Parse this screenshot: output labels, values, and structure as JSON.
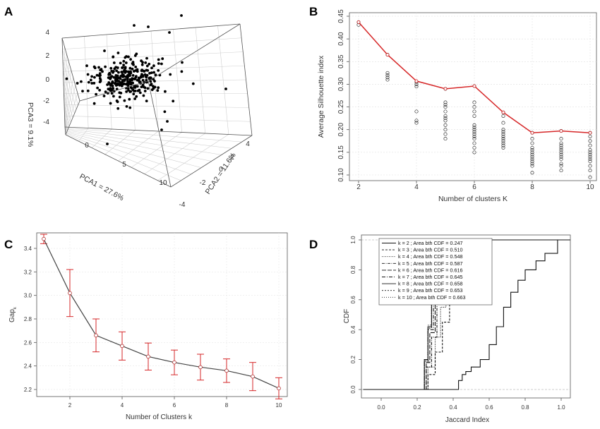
{
  "panels": {
    "A": {
      "letter": "A"
    },
    "B": {
      "letter": "B"
    },
    "C": {
      "letter": "C"
    },
    "D": {
      "letter": "D"
    }
  },
  "chart_data": [
    {
      "id": "A",
      "type": "scatter",
      "subtype": "3d-scatter",
      "xlabel": "PCA1 = 27.6%",
      "ylabel": "PCA2 = 11.6%",
      "zlabel": "PCA3 = 9.1%",
      "x_ticks": [
        "0",
        "5",
        "10"
      ],
      "y_ticks": [
        "-4",
        "-2",
        "0",
        "2",
        "4"
      ],
      "z_ticks": [
        "-4",
        "-2",
        "0",
        "2",
        "4"
      ],
      "grid": true,
      "point_color": "#000000",
      "point_count": 300
    },
    {
      "id": "B",
      "type": "line",
      "xlabel": "Number of clusters K",
      "ylabel": "Average Silhouette index",
      "xlim": [
        2,
        10
      ],
      "ylim": [
        0.08,
        0.45
      ],
      "x_ticks": [
        2,
        4,
        6,
        8,
        10
      ],
      "y_ticks": [
        0.1,
        0.15,
        0.2,
        0.25,
        0.3,
        0.35,
        0.4,
        0.45
      ],
      "y_tick_labels": [
        "0.10",
        "0.15",
        "0.20",
        "0.25",
        "0.30",
        "0.35",
        "0.40",
        "0.45"
      ],
      "grid": true,
      "line_color": "#d62728",
      "x": [
        2,
        3,
        4,
        5,
        6,
        7,
        8,
        9,
        10
      ],
      "y": [
        0.437,
        0.365,
        0.307,
        0.29,
        0.296,
        0.238,
        0.193,
        0.197,
        0.193
      ],
      "scatter": [
        [
          0.437,
          0.431
        ],
        [
          0.365,
          0.325,
          0.32,
          0.315,
          0.31
        ],
        [
          0.305,
          0.3,
          0.295,
          0.24,
          0.22,
          0.215
        ],
        [
          0.29,
          0.26,
          0.255,
          0.25,
          0.24,
          0.23,
          0.225,
          0.22,
          0.21,
          0.2,
          0.19,
          0.18
        ],
        [
          0.296,
          0.26,
          0.25,
          0.24,
          0.23,
          0.21,
          0.205,
          0.2,
          0.195,
          0.19,
          0.185,
          0.18,
          0.17,
          0.16,
          0.15
        ],
        [
          0.238,
          0.23,
          0.215,
          0.2,
          0.195,
          0.19,
          0.185,
          0.18,
          0.175,
          0.17,
          0.165,
          0.16
        ],
        [
          0.193,
          0.18,
          0.17,
          0.16,
          0.155,
          0.15,
          0.145,
          0.14,
          0.135,
          0.13,
          0.125,
          0.12,
          0.105
        ],
        [
          0.197,
          0.18,
          0.17,
          0.165,
          0.16,
          0.155,
          0.15,
          0.145,
          0.14,
          0.135,
          0.125,
          0.12,
          0.11
        ],
        [
          0.193,
          0.185,
          0.175,
          0.165,
          0.155,
          0.15,
          0.145,
          0.14,
          0.135,
          0.13,
          0.12,
          0.11,
          0.095
        ]
      ]
    },
    {
      "id": "C",
      "type": "line",
      "subtype": "errorbar",
      "xlabel": "Number of Clusters k",
      "ylabel": "Gap",
      "ylabel_sub": "k",
      "xlim": [
        1,
        10
      ],
      "ylim": [
        2.2,
        3.5
      ],
      "x_ticks": [
        2,
        4,
        6,
        8,
        10
      ],
      "y_ticks": [
        2.2,
        2.4,
        2.6,
        2.8,
        3.0,
        3.2,
        3.4
      ],
      "y_tick_labels": [
        "2.2",
        "2.4",
        "2.6",
        "2.8",
        "3.0",
        "3.2",
        "3.4"
      ],
      "grid": true,
      "errorbar_color": "#d62728",
      "x": [
        1,
        2,
        3,
        4,
        5,
        6,
        7,
        8,
        9,
        10
      ],
      "y": [
        3.48,
        3.02,
        2.66,
        2.57,
        2.48,
        2.43,
        2.39,
        2.36,
        2.31,
        2.21
      ],
      "err": [
        0.04,
        0.2,
        0.14,
        0.12,
        0.115,
        0.105,
        0.11,
        0.1,
        0.12,
        0.09
      ]
    },
    {
      "id": "D",
      "type": "line",
      "subtype": "cdf",
      "xlabel": "Jaccard Index",
      "ylabel": "CDF",
      "xlim": [
        -0.1,
        1.05
      ],
      "ylim": [
        -0.04,
        1.02
      ],
      "x_ticks": [
        0.0,
        0.2,
        0.4,
        0.6,
        0.8,
        1.0
      ],
      "x_tick_labels": [
        "0.0",
        "0.2",
        "0.4",
        "0.6",
        "0.8",
        "1.0"
      ],
      "y_ticks": [
        0.0,
        0.2,
        0.4,
        0.6,
        0.8,
        1.0
      ],
      "y_tick_labels": [
        "0.0",
        "0.2",
        "0.4",
        "0.6",
        "0.8",
        "1.0"
      ],
      "legend_position": "top-right",
      "series": [
        {
          "name": "k = 2 ; Area bth CDF = 0.247",
          "x": [
            0.4,
            0.43,
            0.45,
            0.47,
            0.5,
            0.55,
            0.6,
            0.64,
            0.68,
            0.72,
            0.76,
            0.8,
            0.86,
            0.91,
            0.98
          ],
          "y": [
            0.0,
            0.06,
            0.1,
            0.12,
            0.15,
            0.2,
            0.3,
            0.42,
            0.55,
            0.65,
            0.73,
            0.8,
            0.86,
            0.91,
            1.0
          ]
        },
        {
          "name": "k = 3 ; Area bth CDF = 0.510",
          "x": [
            0.22,
            0.26,
            0.3,
            0.34,
            0.38,
            0.42,
            0.46,
            0.52,
            0.6
          ],
          "y": [
            0.0,
            0.1,
            0.25,
            0.45,
            0.63,
            0.78,
            0.88,
            0.95,
            1.0
          ]
        },
        {
          "name": "k = 4 ; Area bth CDF = 0.548",
          "x": [
            0.22,
            0.26,
            0.3,
            0.33,
            0.36,
            0.4,
            0.44,
            0.48,
            0.55
          ],
          "y": [
            0.0,
            0.15,
            0.35,
            0.55,
            0.72,
            0.85,
            0.93,
            0.97,
            1.0
          ]
        },
        {
          "name": "k = 5 ; Area bth CDF = 0.587",
          "x": [
            0.22,
            0.25,
            0.28,
            0.31,
            0.34,
            0.37,
            0.4,
            0.45,
            0.52
          ],
          "y": [
            0.0,
            0.15,
            0.35,
            0.57,
            0.73,
            0.84,
            0.92,
            0.97,
            1.0
          ]
        },
        {
          "name": "k = 6 ; Area bth CDF = 0.616",
          "x": [
            0.22,
            0.25,
            0.27,
            0.3,
            0.33,
            0.36,
            0.4,
            0.45,
            0.5
          ],
          "y": [
            0.0,
            0.18,
            0.38,
            0.6,
            0.77,
            0.87,
            0.94,
            0.98,
            1.0
          ]
        },
        {
          "name": "k = 7 ; Area bth CDF = 0.645",
          "x": [
            0.22,
            0.24,
            0.26,
            0.29,
            0.32,
            0.35,
            0.38,
            0.42,
            0.48
          ],
          "y": [
            0.0,
            0.18,
            0.4,
            0.63,
            0.79,
            0.89,
            0.95,
            0.98,
            1.0
          ]
        },
        {
          "name": "k = 8 ; Area bth CDF = 0.658",
          "x": [
            0.22,
            0.24,
            0.26,
            0.28,
            0.31,
            0.34,
            0.37,
            0.41,
            0.46
          ],
          "y": [
            0.0,
            0.2,
            0.42,
            0.65,
            0.81,
            0.9,
            0.95,
            0.98,
            1.0
          ]
        },
        {
          "name": "k = 9 ; Area bth CDF = 0.653",
          "x": [
            0.22,
            0.24,
            0.26,
            0.28,
            0.31,
            0.34,
            0.37,
            0.41,
            0.47
          ],
          "y": [
            0.0,
            0.19,
            0.41,
            0.64,
            0.8,
            0.89,
            0.95,
            0.98,
            1.0
          ]
        },
        {
          "name": "k = 10 ; Area bth CDF = 0.663",
          "x": [
            0.22,
            0.24,
            0.26,
            0.28,
            0.3,
            0.33,
            0.36,
            0.4,
            0.45
          ],
          "y": [
            0.0,
            0.2,
            0.43,
            0.66,
            0.82,
            0.91,
            0.96,
            0.98,
            1.0
          ]
        }
      ]
    }
  ]
}
